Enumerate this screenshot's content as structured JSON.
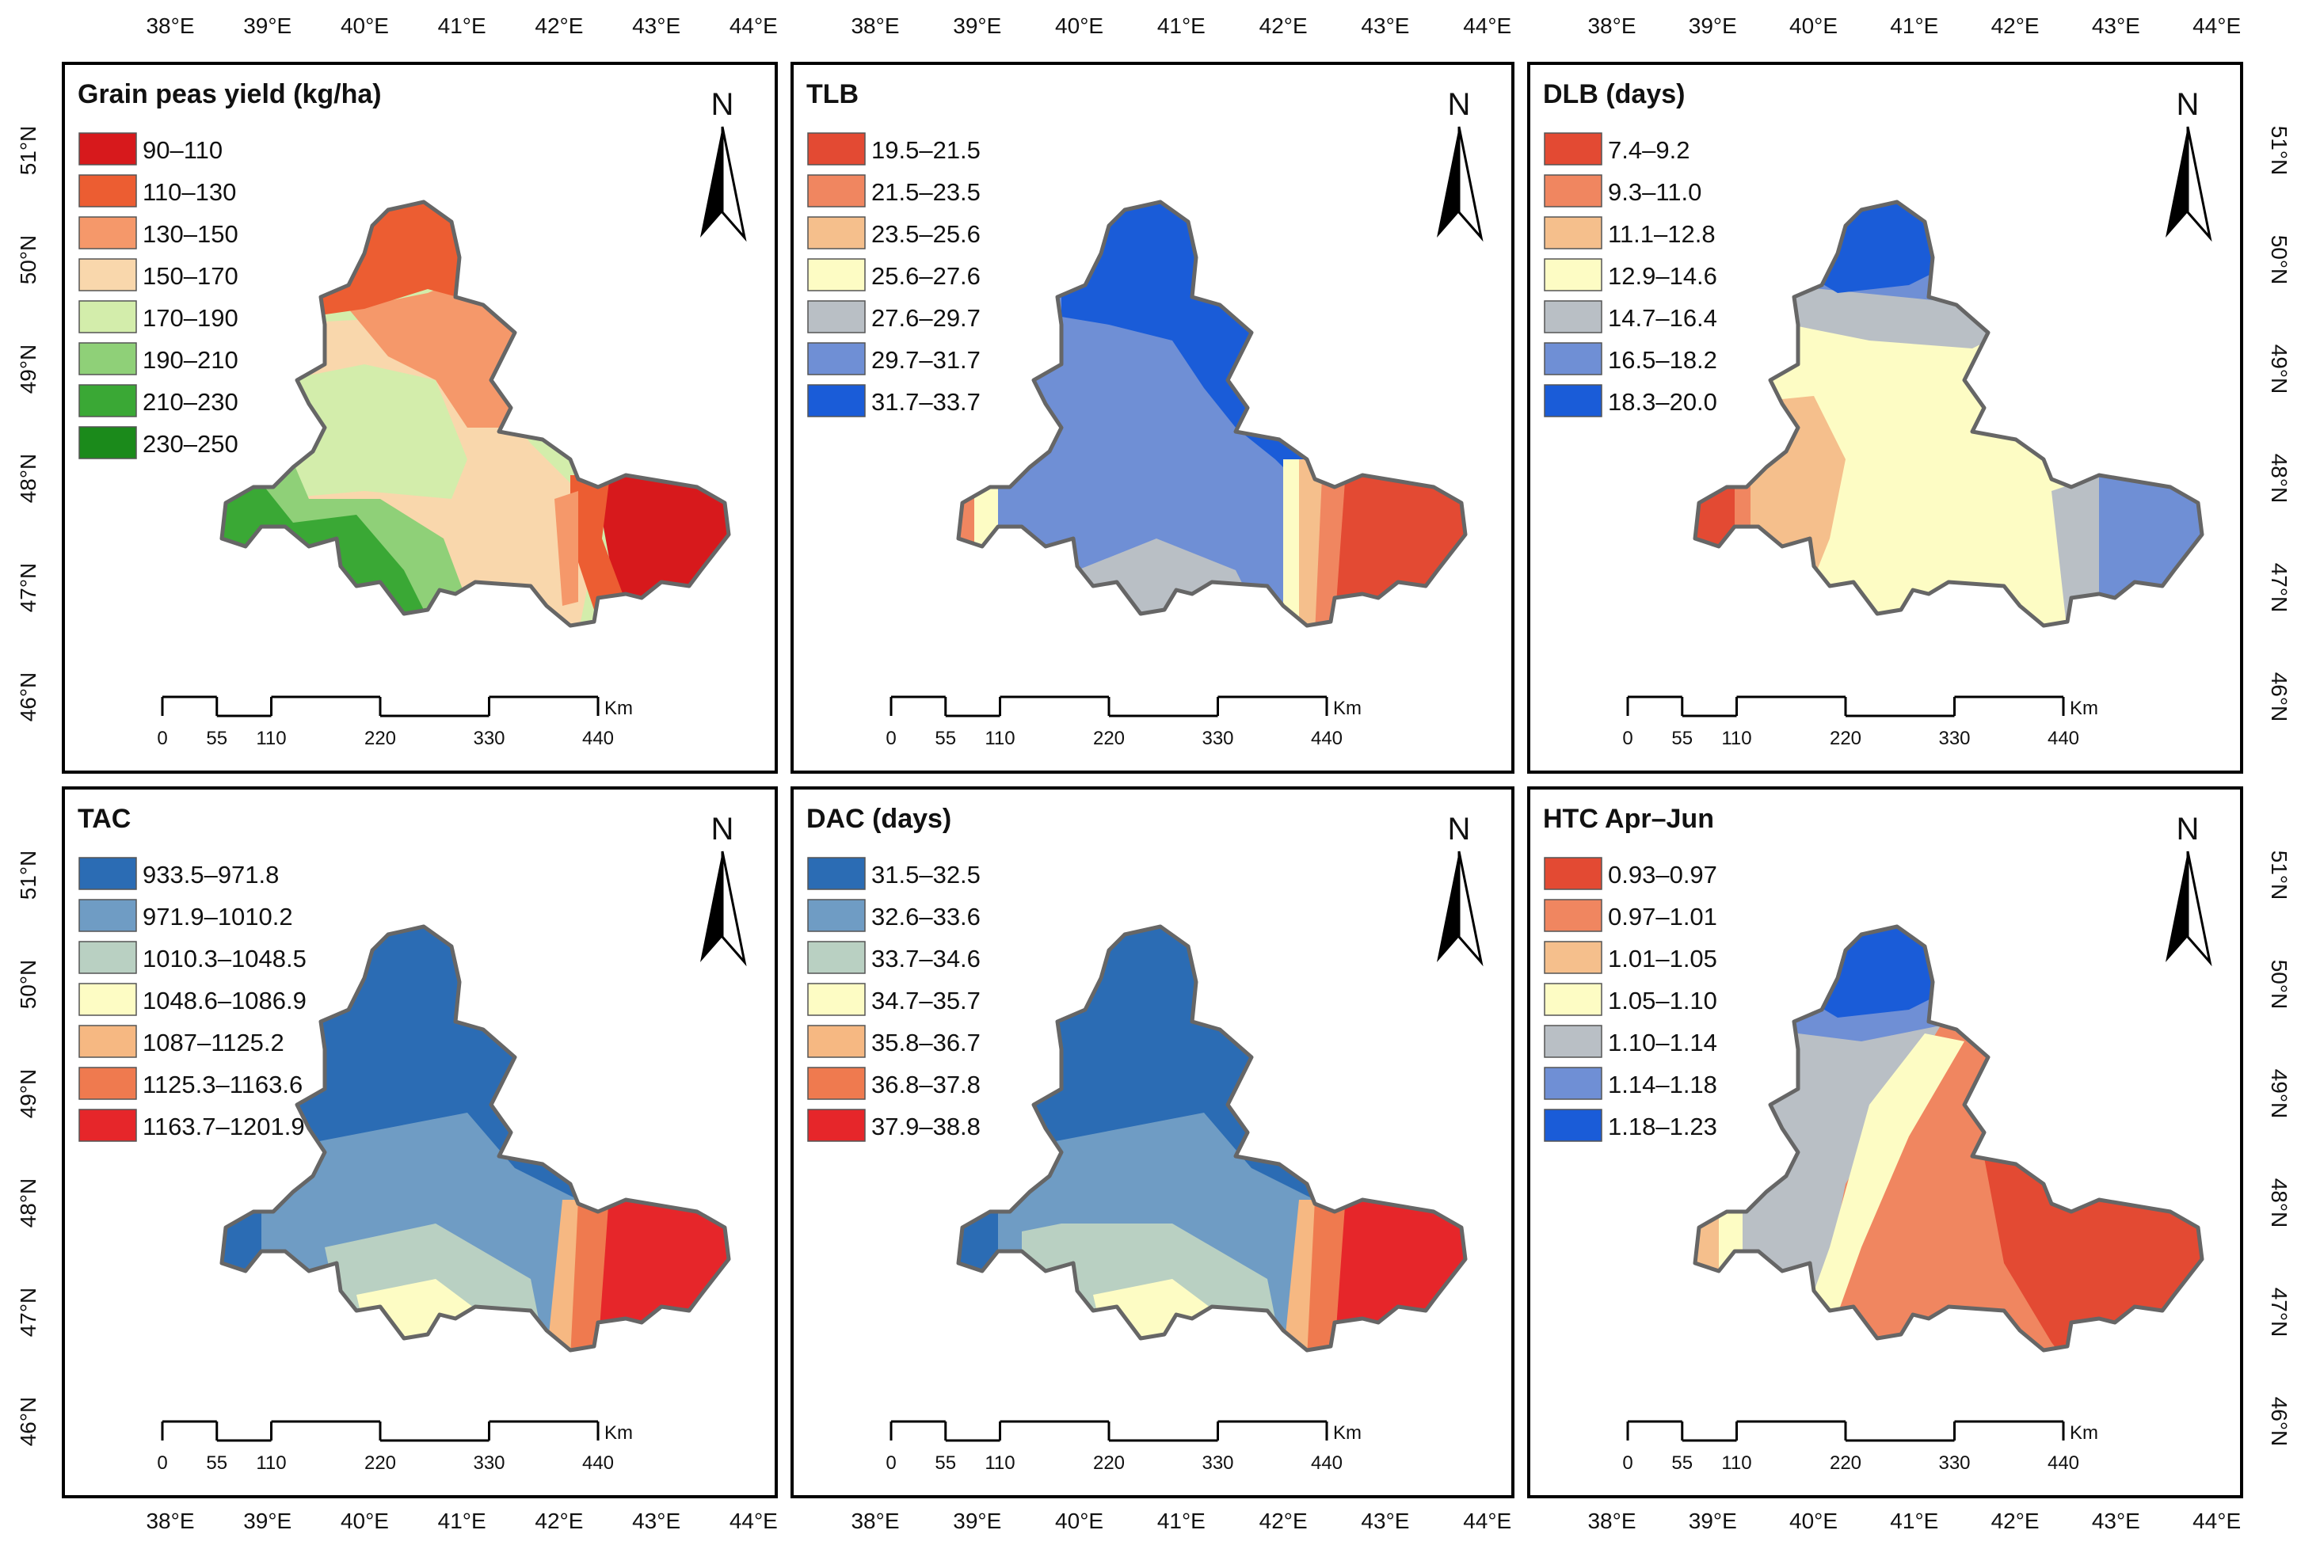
{
  "lon_labels": [
    "38°E",
    "39°E",
    "40°E",
    "41°E",
    "42°E",
    "43°E",
    "44°E"
  ],
  "lat_labels": [
    "51°N",
    "50°N",
    "49°N",
    "48°N",
    "47°N",
    "46°N"
  ],
  "north_label": "N",
  "scale_bar": {
    "ticks": [
      "0",
      "55",
      "110",
      "220",
      "330",
      "440"
    ],
    "unit": "Km"
  },
  "panels": [
    {
      "title": "Grain peas yield (kg/ha)",
      "variant": "yield",
      "legend": [
        {
          "label": "90–110",
          "color": "#d7191c"
        },
        {
          "label": "110–130",
          "color": "#ec5d32"
        },
        {
          "label": "130–150",
          "color": "#f5986a"
        },
        {
          "label": "150–170",
          "color": "#f9d7ac"
        },
        {
          "label": "170–190",
          "color": "#d3edab"
        },
        {
          "label": "190–210",
          "color": "#8fd078"
        },
        {
          "label": "210–230",
          "color": "#3aa835"
        },
        {
          "label": "230–250",
          "color": "#1b8a1b"
        }
      ]
    },
    {
      "title": "TLB",
      "variant": "tlb",
      "legend": [
        {
          "label": "19.5–21.5",
          "color": "#e34a33"
        },
        {
          "label": "21.5–23.5",
          "color": "#f08660"
        },
        {
          "label": "23.5–25.6",
          "color": "#f5bf8c"
        },
        {
          "label": "25.6–27.6",
          "color": "#fdfcc4"
        },
        {
          "label": "27.6–29.7",
          "color": "#b9bfc5"
        },
        {
          "label": "29.7–31.7",
          "color": "#6f8fd5"
        },
        {
          "label": "31.7–33.7",
          "color": "#1a5cd8"
        }
      ]
    },
    {
      "title": "DLB (days)",
      "variant": "dlb",
      "legend": [
        {
          "label": "7.4–9.2",
          "color": "#e34a33"
        },
        {
          "label": "9.3–11.0",
          "color": "#f08660"
        },
        {
          "label": "11.1–12.8",
          "color": "#f5bf8c"
        },
        {
          "label": "12.9–14.6",
          "color": "#fdfcc4"
        },
        {
          "label": "14.7–16.4",
          "color": "#b9bfc5"
        },
        {
          "label": "16.5–18.2",
          "color": "#6f8fd5"
        },
        {
          "label": "18.3–20.0",
          "color": "#1a5cd8"
        }
      ]
    },
    {
      "title": "TAC",
      "variant": "tac",
      "legend": [
        {
          "label": "933.5–971.8",
          "color": "#2b6cb4"
        },
        {
          "label": "971.9–1010.2",
          "color": "#6f9cc4"
        },
        {
          "label": "1010.3–1048.5",
          "color": "#b9d0c2"
        },
        {
          "label": "1048.6–1086.9",
          "color": "#fdfcc4"
        },
        {
          "label": "1087–1125.2",
          "color": "#f6b882"
        },
        {
          "label": "1125.3–1163.6",
          "color": "#ef7a4f"
        },
        {
          "label": "1163.7–1201.9",
          "color": "#e6262a"
        }
      ]
    },
    {
      "title": "DAC (days)",
      "variant": "dac",
      "legend": [
        {
          "label": "31.5–32.5",
          "color": "#2b6cb4"
        },
        {
          "label": "32.6–33.6",
          "color": "#6f9cc4"
        },
        {
          "label": "33.7–34.6",
          "color": "#b9d0c2"
        },
        {
          "label": "34.7–35.7",
          "color": "#fdfcc4"
        },
        {
          "label": "35.8–36.7",
          "color": "#f6b882"
        },
        {
          "label": "36.8–37.8",
          "color": "#ef7a4f"
        },
        {
          "label": "37.9–38.8",
          "color": "#e6262a"
        }
      ]
    },
    {
      "title": "HTC Apr–Jun",
      "variant": "htc",
      "legend": [
        {
          "label": "0.93–0.97",
          "color": "#e34a33"
        },
        {
          "label": "0.97–1.01",
          "color": "#f08660"
        },
        {
          "label": "1.01–1.05",
          "color": "#f5bf8c"
        },
        {
          "label": "1.05–1.10",
          "color": "#fdfcc4"
        },
        {
          "label": "1.10–1.14",
          "color": "#b9bfc5"
        },
        {
          "label": "1.14–1.18",
          "color": "#6f8fd5"
        },
        {
          "label": "1.18–1.23",
          "color": "#1a5cd8"
        }
      ]
    }
  ]
}
